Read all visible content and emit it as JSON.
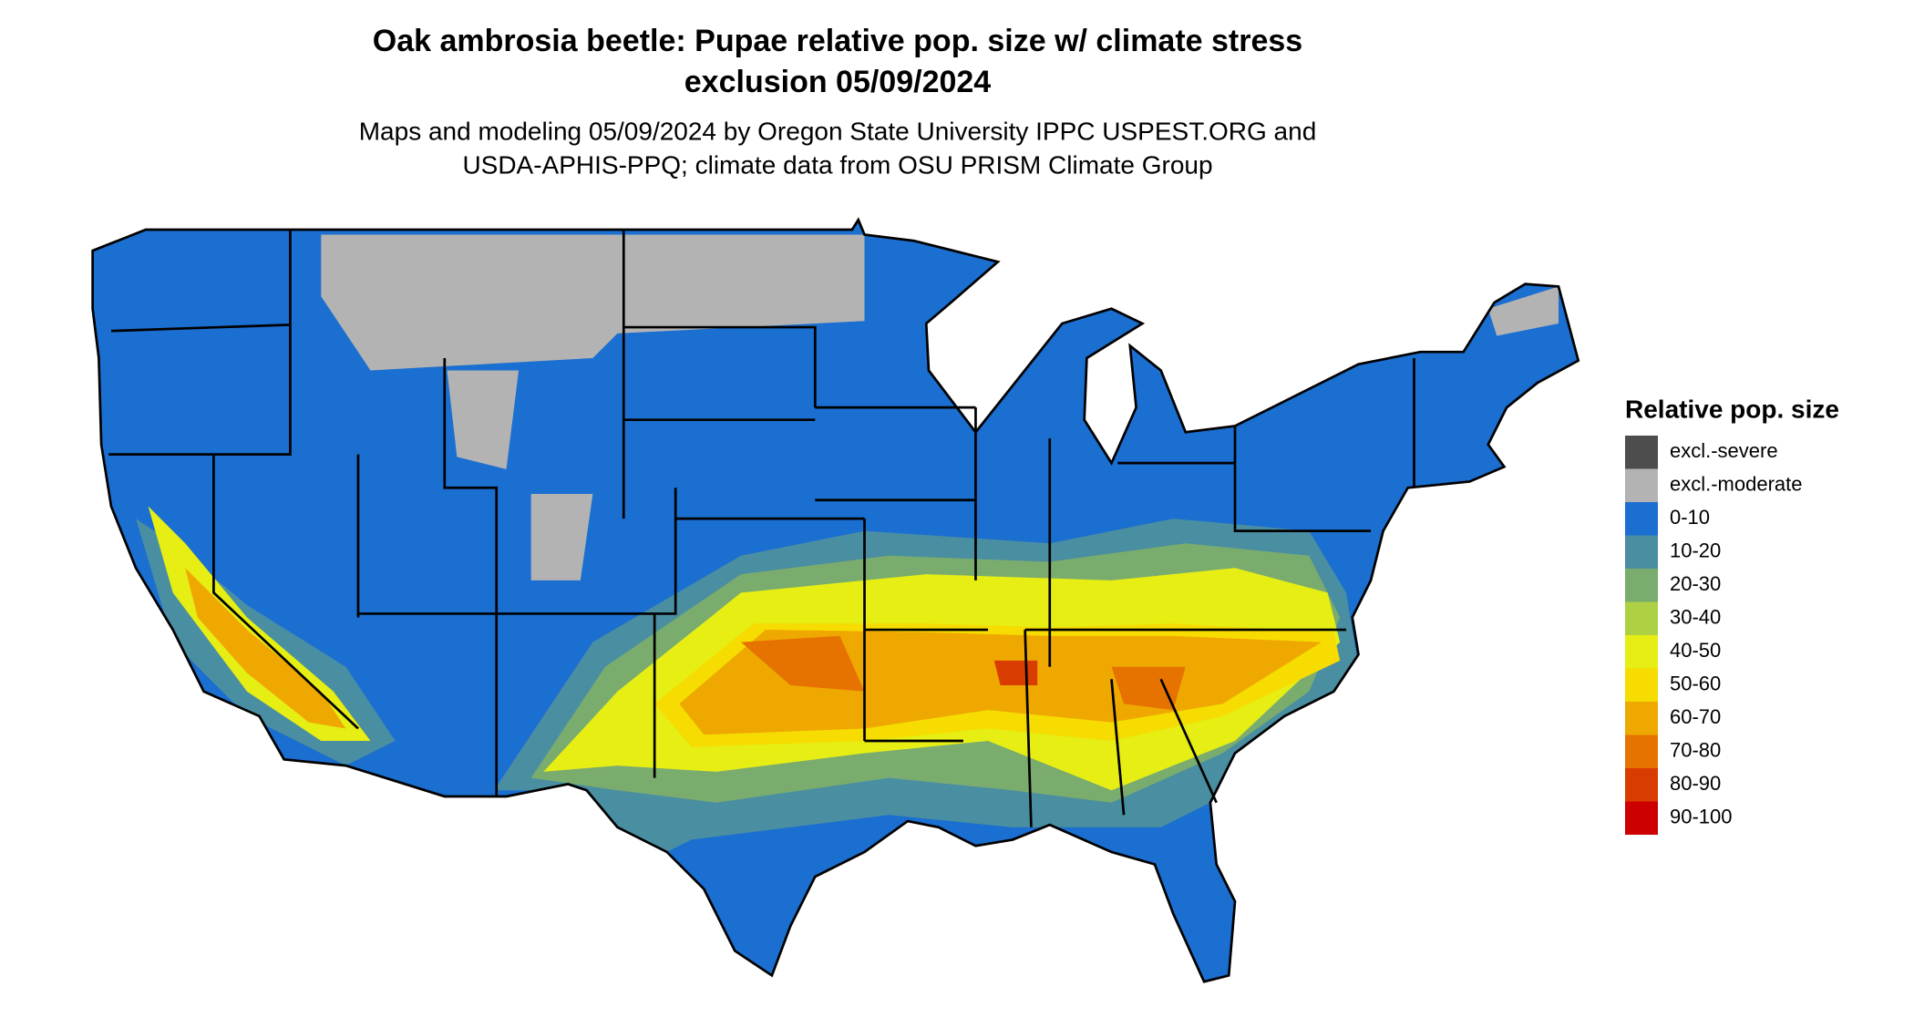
{
  "title": [
    "Oak ambrosia beetle: Pupae relative pop. size w/ climate stress",
    "exclusion 05/09/2024"
  ],
  "subtitle": [
    "Maps and modeling 05/09/2024 by Oregon State University IPPC USPEST.ORG and",
    "USDA-APHIS-PPQ; climate data from OSU PRISM Climate Group"
  ],
  "legend": {
    "title": "Relative pop. size",
    "items": [
      {
        "label": "excl.-severe",
        "color": "#4d4d4d"
      },
      {
        "label": "excl.-moderate",
        "color": "#b3b3b3"
      },
      {
        "label": "0-10",
        "color": "#1a6fd1"
      },
      {
        "label": "10-20",
        "color": "#4a8ea2"
      },
      {
        "label": "20-30",
        "color": "#7aac6e"
      },
      {
        "label": "30-40",
        "color": "#aed044"
      },
      {
        "label": "40-50",
        "color": "#e6ee14"
      },
      {
        "label": "50-60",
        "color": "#f6dc00"
      },
      {
        "label": "60-70",
        "color": "#efa800"
      },
      {
        "label": "70-80",
        "color": "#e67300"
      },
      {
        "label": "80-90",
        "color": "#d93c00"
      },
      {
        "label": "90-100",
        "color": "#cc0000"
      }
    ]
  }
}
